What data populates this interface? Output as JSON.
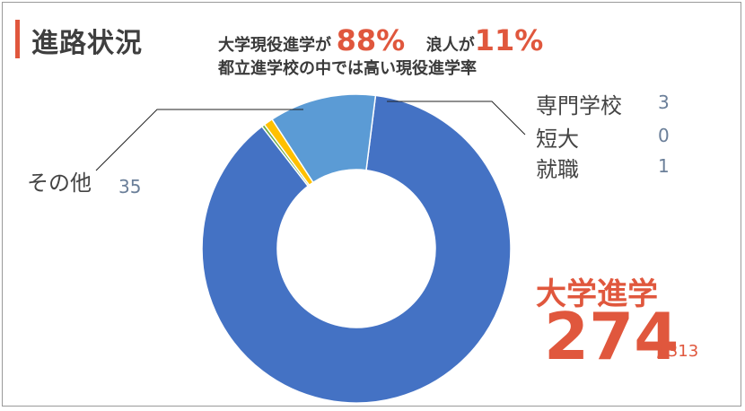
{
  "header": {
    "title": "進路状況",
    "summary_univ_text": "大学現役進学が",
    "summary_univ_pct": "88%",
    "summary_ronin_text": "浪人が",
    "summary_ronin_pct": "11%",
    "summary_line2": "都立進学校の中では高い現役進学率"
  },
  "colors": {
    "accent": "#e0573d",
    "university": "#4472c4",
    "other": "#5b9bd5",
    "vocational": "#ffc000",
    "junior_college": "#a5a5a5",
    "employment": "#70ad47"
  },
  "chart_data": {
    "type": "pie",
    "donut": true,
    "total_label": "/ 313",
    "categories": [
      "大学進学",
      "就職",
      "短大",
      "専門学校",
      "その他"
    ],
    "values": [
      274,
      1,
      0,
      3,
      35
    ],
    "labels": {
      "university": "大学進学",
      "university_value": "274",
      "vocational": "専門学校",
      "vocational_value": "3",
      "junior_college": "短大",
      "junior_college_value": "0",
      "employment": "就職",
      "employment_value": "1",
      "other": "その他",
      "other_value": "35"
    }
  }
}
